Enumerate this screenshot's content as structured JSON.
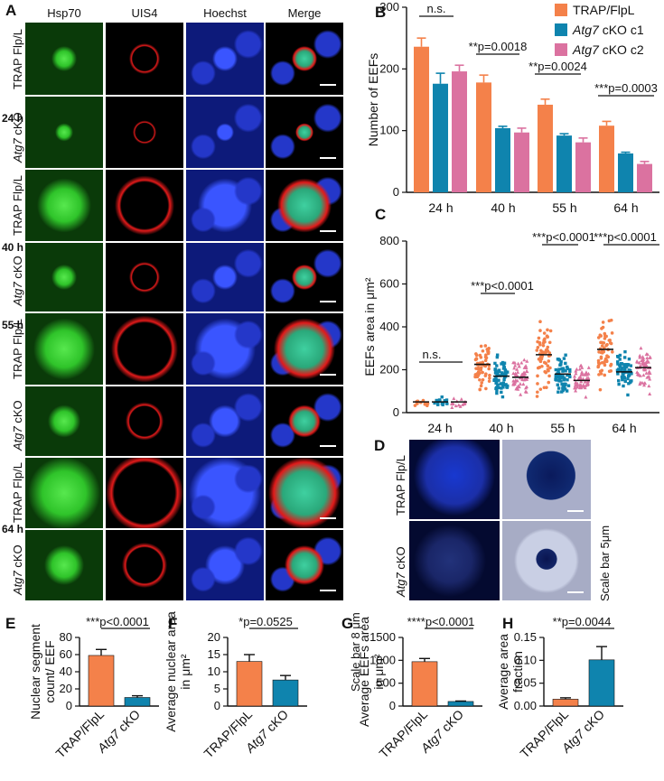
{
  "panel_letters": {
    "A": "A",
    "B": "B",
    "C": "C",
    "D": "D",
    "E": "E",
    "F": "F",
    "G": "G",
    "H": "H"
  },
  "panelA": {
    "columns": [
      "Hsp70",
      "UIS4",
      "Hoechst",
      "Merge"
    ],
    "rows": [
      {
        "label": "TRAP Flp/L",
        "italic_part": ""
      },
      {
        "label": "cKO",
        "italic_part": "Atg7"
      },
      {
        "label": "TRAP Flp/L",
        "italic_part": ""
      },
      {
        "label": "cKO",
        "italic_part": "Atg7"
      },
      {
        "label": "TRAP Flp/L",
        "italic_part": ""
      },
      {
        "label": "cKO",
        "italic_part": "Atg7"
      },
      {
        "label": "TRAP Flp/L",
        "italic_part": ""
      },
      {
        "label": "cKO",
        "italic_part": "Atg7"
      }
    ],
    "timepoints": [
      "24 h",
      "40 h",
      "55 h",
      "64 h"
    ],
    "scale_text": "Scale bar 8 μm"
  },
  "panelD": {
    "rows": [
      {
        "label": "TRAP Flp/L",
        "italic_part": ""
      },
      {
        "label": "cKO",
        "italic_part": "Atg7"
      }
    ],
    "scale_text": "Scale bar 5μm"
  },
  "colors": {
    "trap": "#f4814a",
    "c1": "#0f84ae",
    "c2": "#db72a0",
    "hsp70": "#2fc42a",
    "uis4": "#e21a1a",
    "hoechst": "#1c34e6"
  },
  "chart_data": [
    {
      "id": "B",
      "type": "bar",
      "ylabel": "Number of EEFs",
      "ylim": [
        0,
        300
      ],
      "yticks": [
        0,
        100,
        200,
        300
      ],
      "categories": [
        "24 h",
        "40 h",
        "55 h",
        "64 h"
      ],
      "series": [
        {
          "name": "TRAP/FlpL",
          "italic_part": "",
          "values": [
            236,
            178,
            142,
            108
          ],
          "errors": [
            14,
            12,
            9,
            7
          ]
        },
        {
          "name": "cKO c1",
          "italic_part": "Atg7",
          "values": [
            176,
            104,
            92,
            63
          ],
          "errors": [
            17,
            3,
            3,
            2
          ]
        },
        {
          "name": "cKO c2",
          "italic_part": "Atg7",
          "values": [
            196,
            97,
            81,
            46
          ],
          "errors": [
            10,
            7,
            7,
            4
          ]
        }
      ],
      "annotations": [
        "n.s.",
        "**p=0.0018",
        "**p=0.0024",
        "***p=0.0003"
      ],
      "legend": "top-right"
    },
    {
      "id": "C",
      "type": "scatter",
      "ylabel": "EEFs area in μm²",
      "ylim": [
        0,
        800
      ],
      "yticks": [
        0,
        200,
        400,
        600,
        800
      ],
      "categories": [
        "24 h",
        "40 h",
        "55 h",
        "64 h"
      ],
      "medians": [
        [
          50,
          50,
          50
        ],
        [
          225,
          170,
          165
        ],
        [
          270,
          180,
          150
        ],
        [
          295,
          190,
          210
        ]
      ],
      "spread": [
        [
          22,
          20,
          20
        ],
        [
          95,
          75,
          70
        ],
        [
          140,
          70,
          65
        ],
        [
          130,
          75,
          85
        ]
      ],
      "annotations": [
        "n.s.",
        "***p<0.0001",
        "***p<0.0001",
        "***p<0.0001"
      ]
    },
    {
      "id": "E",
      "type": "bar",
      "ylabel": "Nuclear segment count/ EEF",
      "ylim": [
        0,
        80
      ],
      "yticks": [
        0,
        20,
        40,
        60,
        80
      ],
      "categories": [
        "TRAP/FlpL",
        "Atg7 cKO"
      ],
      "values": [
        59,
        10
      ],
      "errors": [
        7,
        2
      ],
      "annotation": "***p<0.0001"
    },
    {
      "id": "F",
      "type": "bar",
      "ylabel": "Average nuclear area in μm²",
      "ylim": [
        0,
        20
      ],
      "yticks": [
        0,
        5,
        10,
        15,
        20
      ],
      "categories": [
        "TRAP/FlpL",
        "Atg7 cKO"
      ],
      "values": [
        13,
        7.6
      ],
      "errors": [
        2,
        1.3
      ],
      "annotation": "*p=0.0525"
    },
    {
      "id": "G",
      "type": "bar",
      "ylabel": "Average EEFs area in μm²",
      "ylim": [
        0,
        1500
      ],
      "yticks": [
        0,
        500,
        1000,
        1500
      ],
      "categories": [
        "TRAP/FlpL",
        "Atg7 cKO"
      ],
      "values": [
        970,
        100
      ],
      "errors": [
        70,
        10
      ],
      "annotation": "****p<0.0001"
    },
    {
      "id": "H",
      "type": "bar",
      "ylabel": "Average area fraction",
      "ylim": [
        0,
        0.15
      ],
      "yticks": [
        0.0,
        0.05,
        0.1,
        0.15
      ],
      "categories": [
        "TRAP/FlpL",
        "Atg7 cKO"
      ],
      "values": [
        0.015,
        0.101
      ],
      "errors": [
        0.003,
        0.029
      ],
      "annotation": "**p=0.0044"
    }
  ]
}
